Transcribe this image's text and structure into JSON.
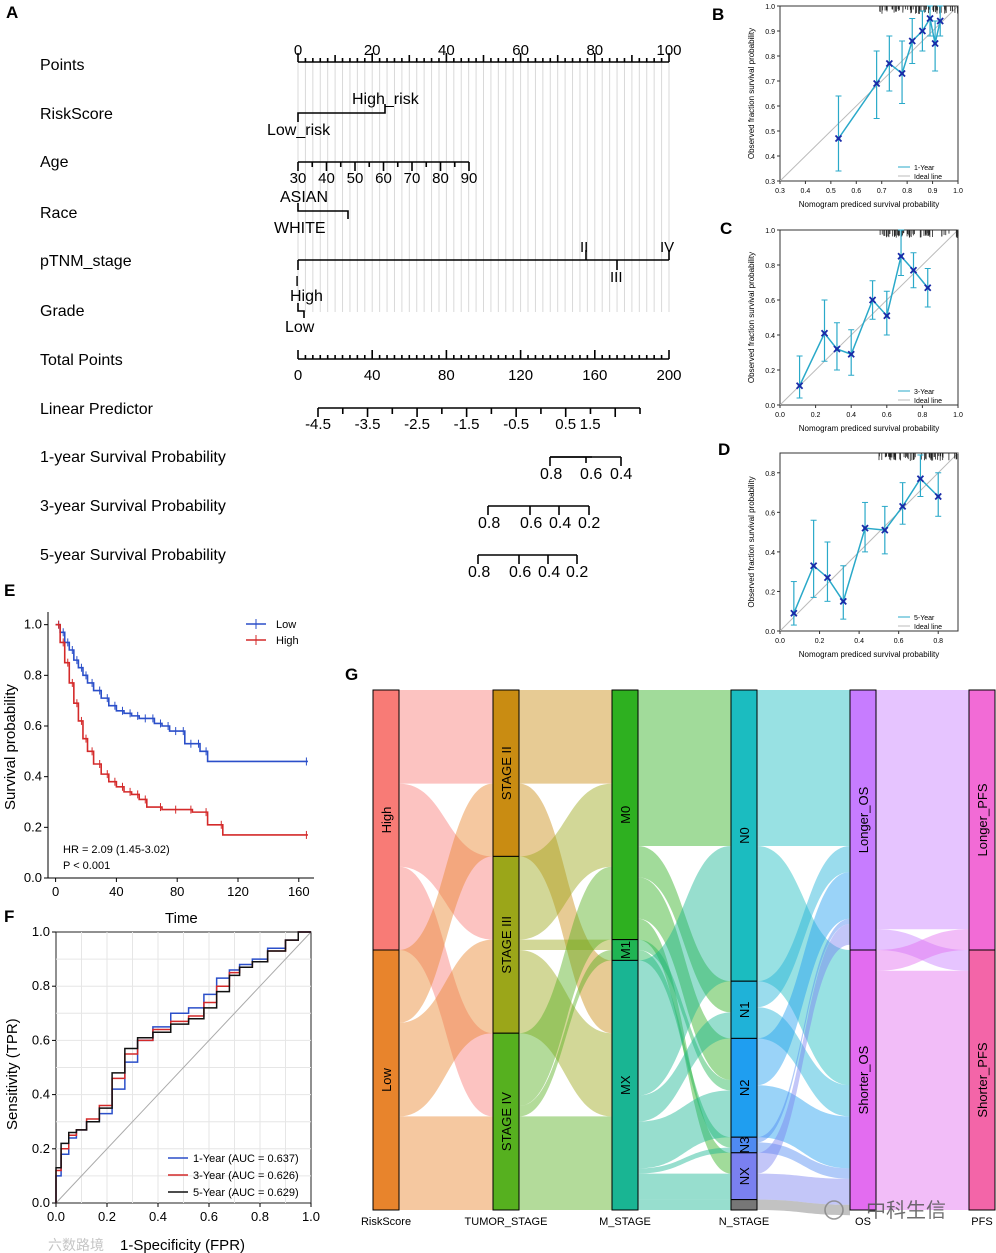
{
  "panel_labels": {
    "A": "A",
    "B": "B",
    "C": "C",
    "D": "D",
    "E": "E",
    "F": "F",
    "G": "G"
  },
  "nomogram": {
    "rows": [
      "Points",
      "RiskScore",
      "Age",
      "Race",
      "pTNM_stage",
      "Grade",
      "Total Points",
      "Linear Predictor",
      "1-year Survival Probability",
      "3-year Survival Probability",
      "5-year Survival Probability"
    ],
    "points_ticks": [
      "0",
      "20",
      "40",
      "60",
      "80",
      "100"
    ],
    "risk_labels": {
      "high": "High_risk",
      "low": "Low_risk"
    },
    "age_ticks": [
      "30",
      "40",
      "50",
      "60",
      "70",
      "80",
      "90"
    ],
    "race_labels": {
      "asian": "ASIAN",
      "white": "WHITE"
    },
    "stage_labels": {
      "i": "I",
      "ii": "II",
      "iii": "III",
      "iv": "IV"
    },
    "grade_labels": {
      "high": "High",
      "low": "Low"
    },
    "total_ticks": [
      "0",
      "40",
      "80",
      "120",
      "160",
      "200"
    ],
    "lp_ticks": [
      "-4.5",
      "-3.5",
      "-2.5",
      "-1.5",
      "-0.5",
      "0.5",
      "1.5"
    ],
    "y1_ticks": [
      "0.8",
      "0.6",
      "0.4"
    ],
    "y3_ticks": [
      "0.8",
      "0.6",
      "0.4",
      "0.2"
    ],
    "y5_ticks": [
      "0.8",
      "0.6",
      "0.4",
      "0.2"
    ]
  },
  "calibration": [
    {
      "panel": "B",
      "type": "scatter",
      "xlabel": "Nomogram prediced survival probability",
      "ylabel": "Observed fraction survival probability",
      "xlim": [
        0.3,
        1.0
      ],
      "ylim": [
        0.3,
        1.0
      ],
      "xticks": [
        "0.3",
        "0.4",
        "0.5",
        "0.6",
        "0.7",
        "0.8",
        "0.9",
        "1.0"
      ],
      "yticks": [
        "0.3",
        "0.4",
        "0.5",
        "0.6",
        "0.7",
        "0.8",
        "0.9",
        "1.0"
      ],
      "legend": [
        "1-Year",
        "Ideal line"
      ],
      "x": [
        0.53,
        0.68,
        0.73,
        0.78,
        0.82,
        0.86,
        0.89,
        0.91,
        0.93
      ],
      "y": [
        0.47,
        0.69,
        0.77,
        0.73,
        0.86,
        0.9,
        0.95,
        0.85,
        0.94
      ],
      "lo": [
        0.34,
        0.55,
        0.66,
        0.61,
        0.77,
        0.82,
        0.88,
        0.74,
        0.88
      ],
      "hi": [
        0.64,
        0.82,
        0.88,
        0.86,
        0.95,
        0.98,
        1.0,
        0.94,
        1.0
      ]
    },
    {
      "panel": "C",
      "type": "scatter",
      "xlabel": "Nomogram prediced survival probability",
      "ylabel": "Observed fraction survival probability",
      "xlim": [
        0.0,
        1.0
      ],
      "ylim": [
        0.0,
        1.0
      ],
      "xticks": [
        "0.0",
        "0.2",
        "0.4",
        "0.6",
        "0.8",
        "1.0"
      ],
      "yticks": [
        "0.0",
        "0.2",
        "0.4",
        "0.6",
        "0.8",
        "1.0"
      ],
      "legend": [
        "3-Year",
        "Ideal line"
      ],
      "x": [
        0.11,
        0.25,
        0.32,
        0.4,
        0.52,
        0.6,
        0.68,
        0.75,
        0.83
      ],
      "y": [
        0.11,
        0.41,
        0.32,
        0.29,
        0.6,
        0.51,
        0.85,
        0.77,
        0.67
      ],
      "lo": [
        0.04,
        0.25,
        0.2,
        0.17,
        0.49,
        0.4,
        0.74,
        0.67,
        0.56
      ],
      "hi": [
        0.28,
        0.6,
        0.47,
        0.43,
        0.71,
        0.65,
        1.0,
        0.87,
        0.78
      ]
    },
    {
      "panel": "D",
      "type": "scatter",
      "xlabel": "Nomogram prediced survival probability",
      "ylabel": "Observed fraction survival probability",
      "xlim": [
        0.0,
        0.9
      ],
      "ylim": [
        0.0,
        0.9
      ],
      "xticks": [
        "0.0",
        "0.2",
        "0.4",
        "0.6",
        "0.8"
      ],
      "yticks": [
        "0.0",
        "0.2",
        "0.4",
        "0.6",
        "0.8"
      ],
      "legend": [
        "5-Year",
        "Ideal line"
      ],
      "x": [
        0.07,
        0.17,
        0.24,
        0.32,
        0.43,
        0.53,
        0.62,
        0.71,
        0.8
      ],
      "y": [
        0.09,
        0.33,
        0.27,
        0.15,
        0.52,
        0.51,
        0.63,
        0.77,
        0.68
      ],
      "lo": [
        0.03,
        0.17,
        0.15,
        0.06,
        0.4,
        0.39,
        0.54,
        0.68,
        0.58
      ],
      "hi": [
        0.25,
        0.56,
        0.45,
        0.33,
        0.65,
        0.63,
        0.75,
        0.89,
        0.8
      ]
    }
  ],
  "km": {
    "type": "line",
    "xlabel": "Time",
    "ylabel": "Survival probability",
    "xticks": [
      "0",
      "40",
      "80",
      "120",
      "160"
    ],
    "yticks": [
      "0.0",
      "0.2",
      "0.4",
      "0.6",
      "0.8",
      "1.0"
    ],
    "xlim": [
      -5,
      170
    ],
    "ylim": [
      0,
      1.05
    ],
    "legend": [
      "Low",
      "High"
    ],
    "hr": "HR = 2.09 (1.45-3.02)",
    "p": "P < 0.001",
    "series": [
      {
        "name": "Low",
        "color": "#2b4fc9",
        "times": [
          0,
          3,
          6,
          9,
          12,
          15,
          18,
          21,
          25,
          30,
          35,
          40,
          45,
          50,
          55,
          60,
          65,
          70,
          75,
          80,
          85,
          90,
          95,
          100,
          166
        ],
        "surv": [
          1.0,
          0.97,
          0.93,
          0.9,
          0.86,
          0.83,
          0.8,
          0.77,
          0.74,
          0.71,
          0.68,
          0.66,
          0.65,
          0.64,
          0.63,
          0.63,
          0.61,
          0.6,
          0.58,
          0.58,
          0.53,
          0.53,
          0.5,
          0.46,
          0.46
        ]
      },
      {
        "name": "High",
        "color": "#d42a2a",
        "times": [
          0,
          3,
          6,
          9,
          12,
          15,
          18,
          21,
          25,
          30,
          35,
          40,
          45,
          50,
          55,
          60,
          70,
          80,
          90,
          100,
          110,
          166
        ],
        "surv": [
          1.0,
          0.93,
          0.85,
          0.77,
          0.69,
          0.62,
          0.55,
          0.5,
          0.45,
          0.41,
          0.38,
          0.36,
          0.34,
          0.33,
          0.31,
          0.28,
          0.27,
          0.27,
          0.26,
          0.21,
          0.17,
          0.17
        ]
      }
    ]
  },
  "roc": {
    "type": "line",
    "xlabel": "1-Specificity (FPR)",
    "ylabel": "Sensitivity (TPR)",
    "xticks": [
      "0.0",
      "0.2",
      "0.4",
      "0.6",
      "0.8",
      "1.0"
    ],
    "yticks": [
      "0.0",
      "0.2",
      "0.4",
      "0.6",
      "0.8",
      "1.0"
    ],
    "series": [
      {
        "name": "1-Year (AUC = 0.637)",
        "color": "#2b4fc9",
        "fpr": [
          0,
          0.02,
          0.05,
          0.08,
          0.12,
          0.17,
          0.22,
          0.27,
          0.32,
          0.38,
          0.45,
          0.52,
          0.58,
          0.63,
          0.68,
          0.72,
          0.77,
          0.83,
          0.9,
          0.95,
          1.0
        ],
        "tpr": [
          0,
          0.1,
          0.18,
          0.24,
          0.27,
          0.3,
          0.33,
          0.42,
          0.52,
          0.6,
          0.65,
          0.7,
          0.72,
          0.77,
          0.83,
          0.86,
          0.88,
          0.9,
          0.94,
          0.97,
          1.0
        ]
      },
      {
        "name": "3-Year (AUC = 0.626)",
        "color": "#d42a2a",
        "fpr": [
          0,
          0.02,
          0.05,
          0.08,
          0.12,
          0.17,
          0.22,
          0.27,
          0.32,
          0.38,
          0.45,
          0.52,
          0.58,
          0.63,
          0.68,
          0.72,
          0.77,
          0.83,
          0.9,
          0.95,
          1.0
        ],
        "tpr": [
          0,
          0.12,
          0.2,
          0.25,
          0.27,
          0.31,
          0.36,
          0.46,
          0.55,
          0.6,
          0.64,
          0.67,
          0.69,
          0.74,
          0.8,
          0.85,
          0.87,
          0.89,
          0.93,
          0.97,
          1.0
        ]
      },
      {
        "name": "5-Year (AUC = 0.629)",
        "color": "#111111",
        "fpr": [
          0,
          0.02,
          0.05,
          0.08,
          0.12,
          0.17,
          0.22,
          0.27,
          0.32,
          0.38,
          0.45,
          0.52,
          0.58,
          0.63,
          0.68,
          0.72,
          0.77,
          0.83,
          0.9,
          0.95,
          1.0
        ],
        "tpr": [
          0,
          0.13,
          0.22,
          0.26,
          0.27,
          0.3,
          0.35,
          0.48,
          0.57,
          0.61,
          0.63,
          0.66,
          0.68,
          0.72,
          0.78,
          0.84,
          0.87,
          0.89,
          0.93,
          0.97,
          1.0
        ]
      }
    ]
  },
  "sankey": {
    "axes": [
      "RiskScore",
      "TUMOR_STAGE",
      "M_STAGE",
      "N_STAGE",
      "OS",
      "PFS"
    ],
    "columns": [
      {
        "name": "RiskScore",
        "nodes": [
          {
            "label": "High",
            "frac": 0.5,
            "color": "#f87b76"
          },
          {
            "label": "Low",
            "frac": 0.5,
            "color": "#e8842c"
          }
        ]
      },
      {
        "name": "TUMOR_STAGE",
        "nodes": [
          {
            "label": "STAGE II",
            "frac": 0.32,
            "color": "#c98c12"
          },
          {
            "label": "STAGE III",
            "frac": 0.34,
            "color": "#9ba619"
          },
          {
            "label": "STAGE IV",
            "frac": 0.34,
            "color": "#56b01f"
          }
        ]
      },
      {
        "name": "M_STAGE",
        "nodes": [
          {
            "label": "M0",
            "frac": 0.48,
            "color": "#2eb020"
          },
          {
            "label": "M1",
            "frac": 0.04,
            "color": "#1fb553"
          },
          {
            "label": "MX",
            "frac": 0.48,
            "color": "#19b593"
          }
        ]
      },
      {
        "name": "N_STAGE",
        "nodes": [
          {
            "label": "N0",
            "frac": 0.56,
            "color": "#1bbcc0"
          },
          {
            "label": "N1",
            "frac": 0.11,
            "color": "#1fb2d8"
          },
          {
            "label": "N2",
            "frac": 0.19,
            "color": "#1f9ef0"
          },
          {
            "label": "N3",
            "frac": 0.03,
            "color": "#4f8af2"
          },
          {
            "label": "NX",
            "frac": 0.09,
            "color": "#7a80f0"
          },
          {
            "label": "",
            "frac": 0.02,
            "color": "#777777"
          }
        ]
      },
      {
        "name": "OS",
        "nodes": [
          {
            "label": "Longer_OS",
            "frac": 0.5,
            "color": "#c77cff"
          },
          {
            "label": "Shorter_OS",
            "frac": 0.5,
            "color": "#e36cf0"
          }
        ]
      },
      {
        "name": "PFS",
        "nodes": [
          {
            "label": "Longer_PFS",
            "frac": 0.5,
            "color": "#f26bd6"
          },
          {
            "label": "Shorter_PFS",
            "frac": 0.5,
            "color": "#f365a8"
          }
        ]
      }
    ],
    "watermark": "中科生信",
    "watermark2": "六数路境"
  }
}
